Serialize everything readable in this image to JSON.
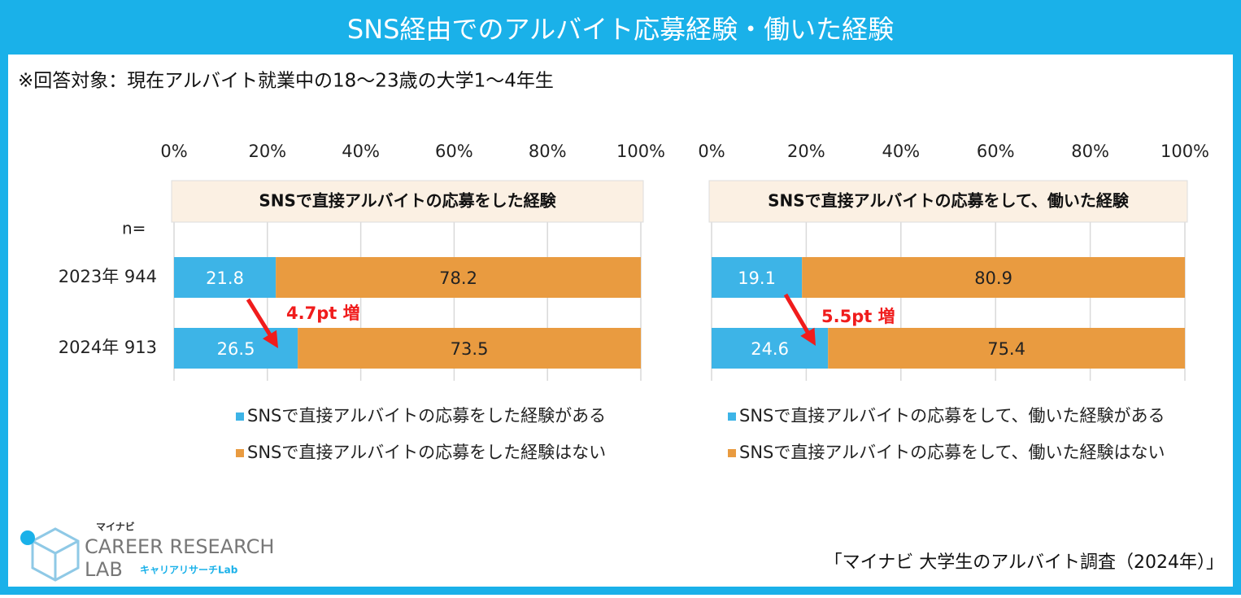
{
  "header": {
    "title": "SNS経由でのアルバイト応募経験・働いた経験",
    "subtitle": "※回答対象：現在アルバイト就業中の18～23歳の大学1～4年生",
    "n_label": "n="
  },
  "chart_data": [
    {
      "type": "stacked-bar",
      "title": "SNSで直接アルバイトの応募をした経験",
      "categories": [
        "2023年  944",
        "2024年  913"
      ],
      "series": [
        {
          "name": "SNSで直接アルバイトの応募をした経験がある",
          "color": "#3db4e7",
          "values": [
            21.8,
            26.5
          ]
        },
        {
          "name": "SNSで直接アルバイトの応募をした経験はない",
          "color": "#e99b40",
          "values": [
            78.2,
            73.5
          ]
        }
      ],
      "xlim": [
        0,
        100
      ],
      "xticks": [
        {
          "value": 0,
          "label": "0%"
        },
        {
          "value": 20,
          "label": "20%"
        },
        {
          "value": 40,
          "label": "40%"
        },
        {
          "value": 60,
          "label": "60%"
        },
        {
          "value": 80,
          "label": "80%"
        },
        {
          "value": 100,
          "label": "100%"
        }
      ],
      "grid": true,
      "annotation": "4.7pt 増"
    },
    {
      "type": "stacked-bar",
      "title": "SNSで直接アルバイトの応募をして、働いた経験",
      "categories": [
        null,
        null
      ],
      "series": [
        {
          "name": "SNSで直接アルバイトの応募をして、働いた経験がある",
          "color": "#3db4e7",
          "values": [
            19.1,
            24.6
          ]
        },
        {
          "name": "SNSで直接アルバイトの応募をして、働いた経験はない",
          "color": "#e99b40",
          "values": [
            80.9,
            75.4
          ]
        }
      ],
      "xlim": [
        0,
        100
      ],
      "xticks": [
        {
          "value": 0,
          "label": "0%"
        },
        {
          "value": 20,
          "label": "20%"
        },
        {
          "value": 40,
          "label": "40%"
        },
        {
          "value": 60,
          "label": "60%"
        },
        {
          "value": 80,
          "label": "80%"
        },
        {
          "value": 100,
          "label": "100%"
        }
      ],
      "grid": true,
      "annotation": "5.5pt 増"
    }
  ],
  "footer": {
    "source": "「マイナビ 大学生のアルバイト調査（2024年）」",
    "logo_brand": "マイナビ",
    "logo_line1": "CAREER RESEARCH",
    "logo_line2": "LAB",
    "logo_sub": "キャリアリサーチLab"
  }
}
